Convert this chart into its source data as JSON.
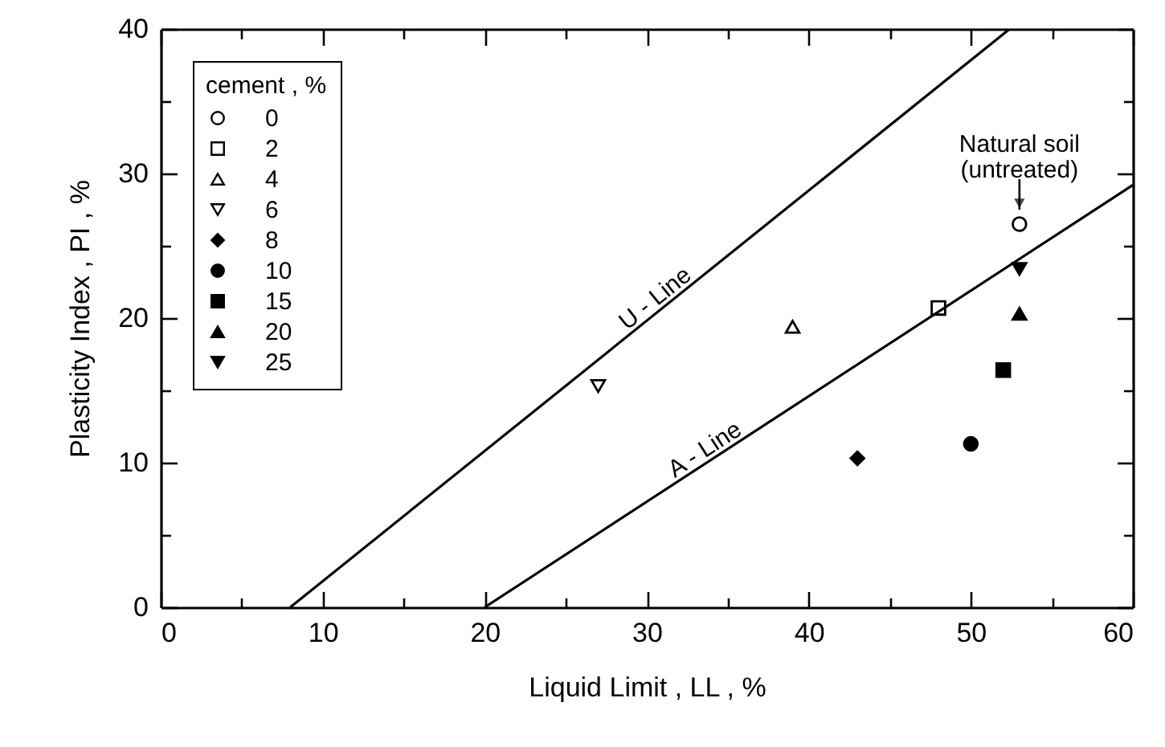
{
  "chart_data": {
    "type": "scatter",
    "xlabel": "Liquid Limit , LL , %",
    "ylabel": "Plasticity Index , PI , %",
    "legend_title": "cement , %",
    "legend": "top left",
    "grid": false,
    "xlim": [
      0,
      60
    ],
    "xticks": [
      0,
      {
        "value": 5,
        "label": null
      },
      10,
      {
        "value": 15,
        "label": null
      },
      20,
      {
        "value": 25,
        "label": null
      },
      30,
      {
        "value": 35,
        "label": null
      },
      40,
      {
        "value": 45,
        "label": null
      },
      50,
      {
        "value": 55,
        "label": null
      },
      60
    ],
    "ylim": [
      0,
      40
    ],
    "yticks": [
      0,
      {
        "value": 5,
        "label": null
      },
      10,
      {
        "value": 15,
        "label": null
      },
      20,
      {
        "value": 25,
        "label": null
      },
      30,
      {
        "value": 35,
        "label": null
      },
      40
    ],
    "series": [
      {
        "name": "0",
        "color": "#000000",
        "marker": "circle-open",
        "x": [
          53
        ],
        "values": [
          26.5
        ]
      },
      {
        "name": "2",
        "color": "#000000",
        "marker": "square-open",
        "x": [
          48
        ],
        "values": [
          20.7
        ]
      },
      {
        "name": "4",
        "color": "#000000",
        "marker": "triangle-open",
        "x": [
          39
        ],
        "values": [
          19.4
        ]
      },
      {
        "name": "6",
        "color": "#000000",
        "marker": "triangle-down-open",
        "x": [
          27
        ],
        "values": [
          15.3
        ]
      },
      {
        "name": "8",
        "color": "#000000",
        "marker": "diamond",
        "x": [
          43
        ],
        "values": [
          10.3
        ]
      },
      {
        "name": "10",
        "color": "#000000",
        "marker": "circle",
        "x": [
          50
        ],
        "values": [
          11.3
        ]
      },
      {
        "name": "15",
        "color": "#000000",
        "marker": "square",
        "x": [
          52
        ],
        "values": [
          16.4
        ]
      },
      {
        "name": "20",
        "color": "#000000",
        "marker": "triangle",
        "x": [
          53
        ],
        "values": [
          20.3
        ]
      },
      {
        "name": "25",
        "color": "#000000",
        "marker": "triangle-down",
        "x": [
          53
        ],
        "values": [
          23.4
        ]
      },
      {
        "type": "line",
        "color": "#000000",
        "x": [
          8,
          52.4
        ],
        "values": [
          0,
          40
        ]
      },
      {
        "type": "line",
        "color": "#000000",
        "x": [
          20,
          60
        ],
        "values": [
          0,
          29.2
        ]
      }
    ],
    "annotations": [
      {
        "text": "U - Line",
        "x": 31,
        "y": 20.7
      },
      {
        "text": "A - Line",
        "x": 34,
        "y": 10.2
      },
      {
        "text": "Natural soil\n(untreated)",
        "x": 53,
        "y": 26.5
      }
    ]
  }
}
